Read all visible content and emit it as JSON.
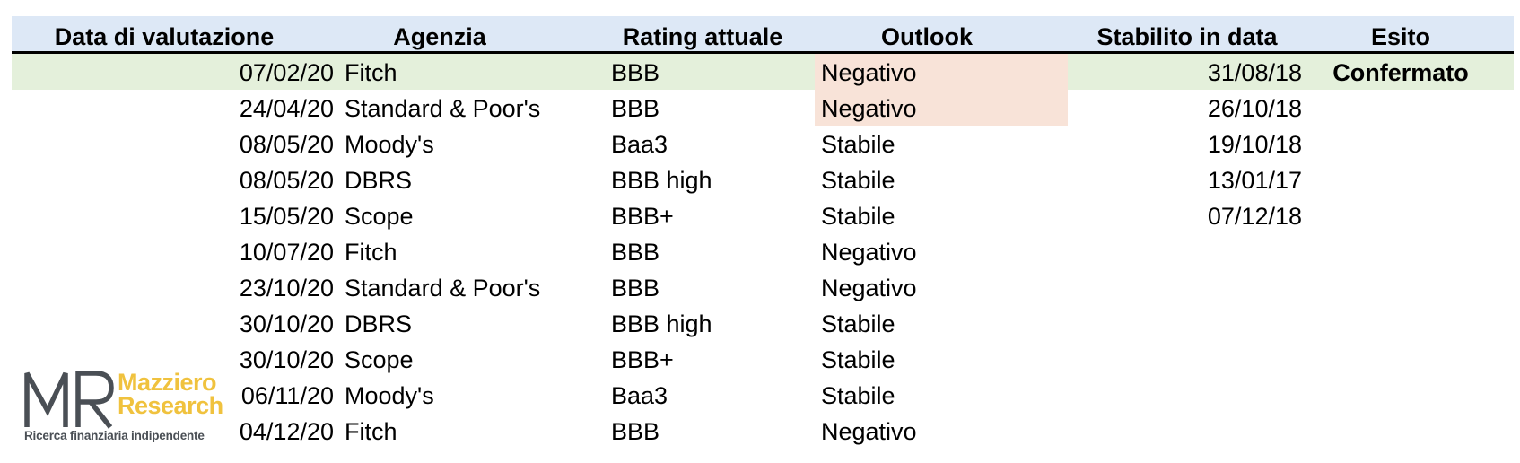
{
  "table": {
    "headers": {
      "date": "Data di valutazione",
      "agency": "Agenzia",
      "rating": "Rating attuale",
      "outlook": "Outlook",
      "established": "Stabilito in data",
      "outcome": "Esito"
    },
    "rows": [
      {
        "date": "07/02/20",
        "agency": "Fitch",
        "rating": "BBB",
        "outlook": "Negativo",
        "established": "31/08/18",
        "outcome": "Confermato"
      },
      {
        "date": "24/04/20",
        "agency": "Standard & Poor's",
        "rating": "BBB",
        "outlook": "Negativo",
        "established": "26/10/18",
        "outcome": ""
      },
      {
        "date": "08/05/20",
        "agency": "Moody's",
        "rating": "Baa3",
        "outlook": "Stabile",
        "established": "19/10/18",
        "outcome": ""
      },
      {
        "date": "08/05/20",
        "agency": "DBRS",
        "rating": "BBB high",
        "outlook": "Stabile",
        "established": "13/01/17",
        "outcome": ""
      },
      {
        "date": "15/05/20",
        "agency": "Scope",
        "rating": "BBB+",
        "outlook": "Stabile",
        "established": "07/12/18",
        "outcome": ""
      },
      {
        "date": "10/07/20",
        "agency": "Fitch",
        "rating": "BBB",
        "outlook": "Negativo",
        "established": "",
        "outcome": ""
      },
      {
        "date": "23/10/20",
        "agency": "Standard & Poor's",
        "rating": "BBB",
        "outlook": "Negativo",
        "established": "",
        "outcome": ""
      },
      {
        "date": "30/10/20",
        "agency": "DBRS",
        "rating": "BBB high",
        "outlook": "Stabile",
        "established": "",
        "outcome": ""
      },
      {
        "date": "30/10/20",
        "agency": "Scope",
        "rating": "BBB+",
        "outlook": "Stabile",
        "established": "",
        "outcome": ""
      },
      {
        "date": "06/11/20",
        "agency": "Moody's",
        "rating": "Baa3",
        "outlook": "Stabile",
        "established": "",
        "outcome": ""
      },
      {
        "date": "04/12/20",
        "agency": "Fitch",
        "rating": "BBB",
        "outlook": "Negativo",
        "established": "",
        "outcome": ""
      }
    ]
  },
  "logo": {
    "name_line1": "Mazziero",
    "name_line2": "Research",
    "tagline": "Ricerca finanziaria indipendente"
  },
  "colors": {
    "header_bg": "#dde8f6",
    "highlight_row_bg": "#e4f0db",
    "negative_outlook_bg": "#f8e3d8",
    "logo_gold": "#f0c23e",
    "logo_gray": "#4a4f55"
  }
}
